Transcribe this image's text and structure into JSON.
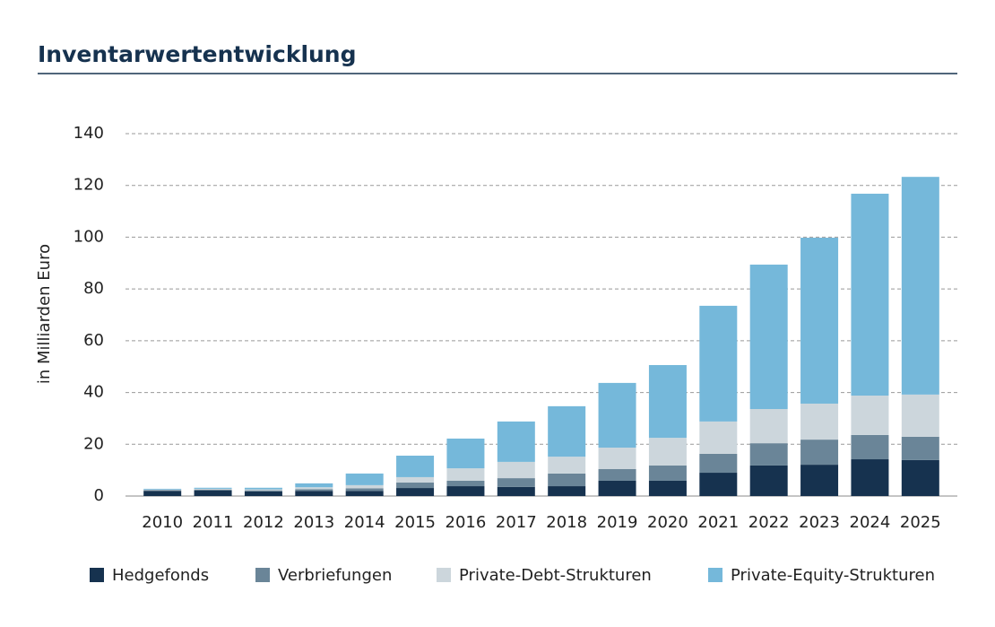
{
  "chart_data": {
    "type": "stacked-bar",
    "title": "Inventarwertentwicklung",
    "y_label": "in Milliarden Euro",
    "categories": [
      "2010",
      "2011",
      "2012",
      "2013",
      "2014",
      "2015",
      "2016",
      "2017",
      "2018",
      "2019",
      "2020",
      "2021",
      "2022",
      "2023",
      "2024",
      "2025"
    ],
    "series": [
      {
        "name": "Hedgefonds",
        "color": "#16324f",
        "values": [
          2.0,
          2.2,
          1.8,
          2.0,
          2.0,
          3.1,
          3.8,
          3.5,
          3.8,
          5.9,
          5.9,
          9.0,
          11.8,
          12.1,
          14.2,
          13.9
        ]
      },
      {
        "name": "Verbriefungen",
        "color": "#6a8598",
        "values": [
          0.3,
          0.3,
          0.4,
          0.6,
          1.0,
          2.1,
          2.1,
          3.4,
          4.9,
          4.5,
          5.9,
          7.3,
          8.6,
          9.7,
          9.4,
          9.0
        ]
      },
      {
        "name": "Private-Debt-Strukturen",
        "color": "#ccd6dc",
        "values": [
          0.2,
          0.3,
          0.4,
          0.8,
          1.2,
          2.1,
          4.8,
          6.3,
          6.5,
          8.3,
          10.7,
          12.5,
          13.2,
          13.9,
          15.2,
          16.3
        ]
      },
      {
        "name": "Private-Equity-Strukturen",
        "color": "#75b8da",
        "values": [
          0.3,
          0.4,
          0.6,
          1.5,
          4.5,
          8.3,
          11.5,
          15.6,
          19.5,
          25.0,
          28.1,
          44.7,
          55.8,
          64.1,
          78.0,
          84.1
        ]
      }
    ],
    "ylim": [
      0,
      140
    ],
    "yticks": [
      0,
      20,
      40,
      60,
      80,
      100,
      120,
      140
    ],
    "grid": true
  }
}
